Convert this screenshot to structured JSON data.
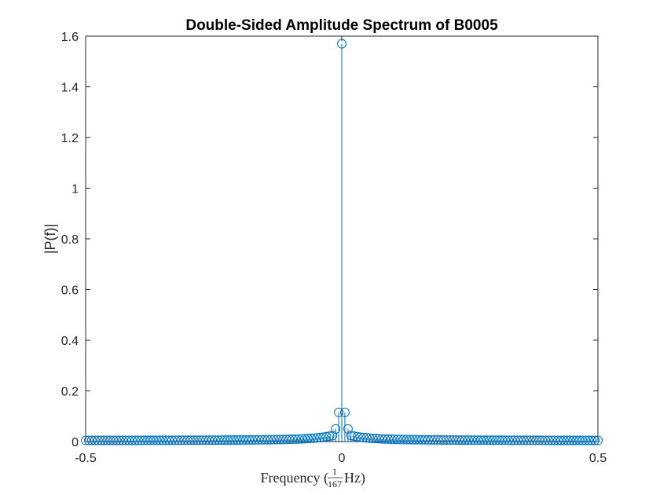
{
  "chart_data": {
    "type": "stem",
    "title": "Double-Sided Amplitude Spectrum of B0005",
    "ylabel": "|P(f)|",
    "xlabel": {
      "prefix": "Frequency (",
      "frac_num": "1",
      "frac_den": "167",
      "suffix": " Hz)"
    },
    "xlim": [
      -0.5,
      0.5
    ],
    "ylim": [
      0,
      1.6
    ],
    "xticks": [
      -0.5,
      0,
      0.5
    ],
    "xtick_labels": [
      "-0.5",
      "0",
      "0.5"
    ],
    "yticks": [
      0,
      0.2,
      0.4,
      0.6,
      0.8,
      1,
      1.2,
      1.4,
      1.6
    ],
    "ytick_labels": [
      "0",
      "0.2",
      "0.4",
      "0.6",
      "0.8",
      "1",
      "1.2",
      "1.4",
      "1.6"
    ],
    "sample_count": 167,
    "peaks": [
      {
        "x": 0,
        "y": 1.57
      },
      {
        "x": -0.006,
        "y": 0.115
      },
      {
        "x": 0.006,
        "y": 0.115
      },
      {
        "x": -0.012,
        "y": 0.05
      },
      {
        "x": 0.012,
        "y": 0.05
      }
    ],
    "series_color": "#0072bd"
  }
}
